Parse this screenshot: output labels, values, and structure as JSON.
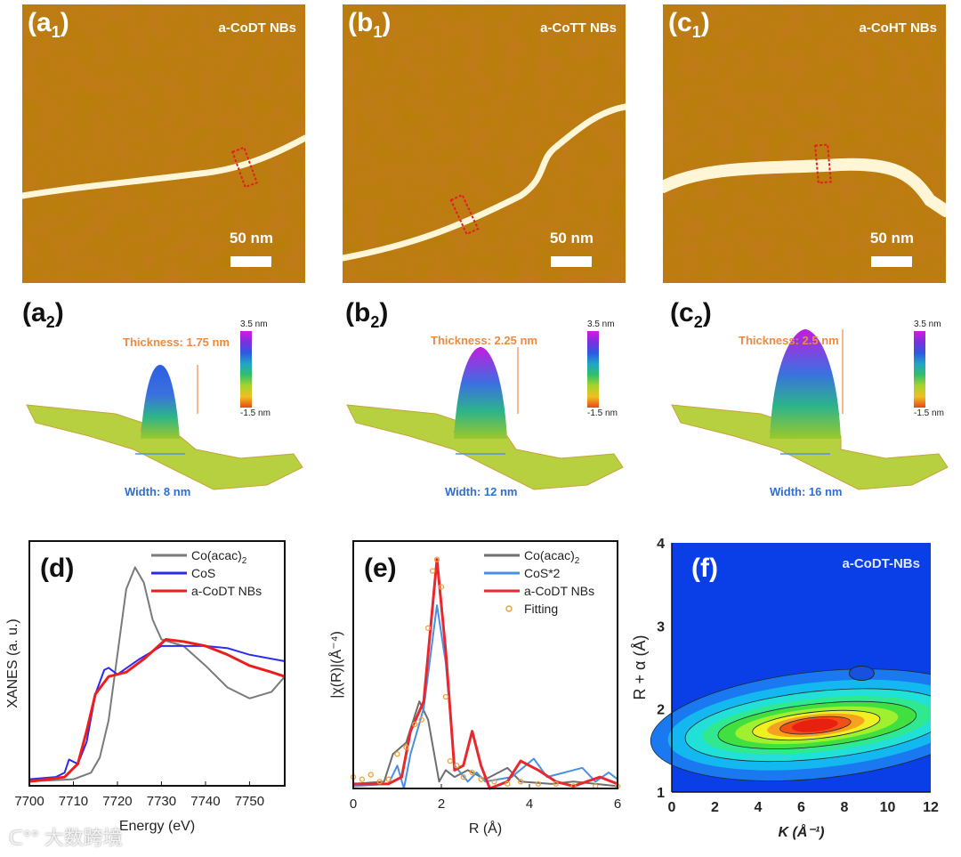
{
  "afm_panels": [
    {
      "label": "(a",
      "sub": "1",
      "close": ")",
      "title": "a-CoDT NBs",
      "scale": "50 nm"
    },
    {
      "label": "(b",
      "sub": "1",
      "close": ")",
      "title": "a-CoTT NBs",
      "scale": "50 nm"
    },
    {
      "label": "(c",
      "sub": "1",
      "close": ")",
      "title": "a-CoHT NBs",
      "scale": "50 nm"
    }
  ],
  "profile_panels": [
    {
      "label": "(a",
      "sub": "2",
      "close": ")",
      "thickness": "Thickness:  1.75 nm",
      "width": "Width: 8 nm",
      "cbar_max": "3.5 nm",
      "cbar_min": "-1.5 nm"
    },
    {
      "label": "(b",
      "sub": "2",
      "close": ")",
      "thickness": "Thickness:  2.25 nm",
      "width": "Width: 12 nm",
      "cbar_max": "3.5 nm",
      "cbar_min": "-1.5 nm"
    },
    {
      "label": "(c",
      "sub": "2",
      "close": ")",
      "thickness": "Thickness:  2.5 nm",
      "width": "Width: 16 nm",
      "cbar_max": "3.5 nm",
      "cbar_min": "-1.5 nm"
    }
  ],
  "watermark": "大数跨境",
  "chart_data": [
    {
      "type": "line",
      "panel": "(d)",
      "xlabel": "Energy (eV)",
      "ylabel": "XANES (a. u.)",
      "xlim": [
        7700,
        7758
      ],
      "ylim": [
        0,
        1.12
      ],
      "xticks": [
        7700,
        7710,
        7720,
        7730,
        7740,
        7750
      ],
      "legend_position": "top-right",
      "series": [
        {
          "name": "Co(acac)",
          "name_sub": "2",
          "color": "#7a7a7a",
          "x": [
            7700,
            7710,
            7714,
            7716,
            7718,
            7720,
            7722,
            7724,
            7726,
            7728,
            7730,
            7735,
            7740,
            7745,
            7750,
            7755,
            7758
          ],
          "y": [
            0.02,
            0.03,
            0.06,
            0.13,
            0.3,
            0.6,
            0.9,
            1.0,
            0.93,
            0.76,
            0.67,
            0.64,
            0.55,
            0.45,
            0.4,
            0.43,
            0.5
          ]
        },
        {
          "name": "CoS",
          "name_sub": "",
          "color": "#2b2bef",
          "x": [
            7700,
            7706,
            7708,
            7709,
            7711,
            7713,
            7715,
            7717,
            7718,
            7720,
            7725,
            7730,
            7740,
            7745,
            7750,
            7758
          ],
          "y": [
            0.03,
            0.04,
            0.06,
            0.12,
            0.1,
            0.2,
            0.42,
            0.53,
            0.54,
            0.51,
            0.58,
            0.64,
            0.64,
            0.63,
            0.6,
            0.57
          ]
        },
        {
          "name": "a-CoDT NBs",
          "name_sub": "",
          "color": "#ee1c1c",
          "x": [
            7700,
            7708,
            7711,
            7713,
            7715,
            7718,
            7722,
            7726,
            7731,
            7735,
            7740,
            7745,
            7750,
            7755,
            7758
          ],
          "y": [
            0.02,
            0.04,
            0.1,
            0.25,
            0.42,
            0.5,
            0.52,
            0.58,
            0.67,
            0.66,
            0.64,
            0.6,
            0.55,
            0.52,
            0.5
          ]
        }
      ]
    },
    {
      "type": "line",
      "panel": "(e)",
      "xlabel": "R (Å)",
      "ylabel": "|χ(R)|(Å⁻⁴)",
      "xlim": [
        0,
        6
      ],
      "ylim": [
        0,
        1.08
      ],
      "xticks": [
        0,
        2,
        4,
        6
      ],
      "legend_position": "top-right",
      "series": [
        {
          "name": "Co(acac)",
          "name_sub": "2",
          "color": "#6e6e6e",
          "x": [
            0,
            0.7,
            0.9,
            1.2,
            1.5,
            1.7,
            1.95,
            2.1,
            2.3,
            2.6,
            3.0,
            3.5,
            3.8,
            4.5,
            5.0,
            6.0
          ],
          "y": [
            0.02,
            0.03,
            0.15,
            0.2,
            0.38,
            0.3,
            0.03,
            0.08,
            0.05,
            0.08,
            0.04,
            0.09,
            0.03,
            0.02,
            0.03,
            0.01
          ]
        },
        {
          "name": "CoS*2",
          "name_sub": "",
          "color": "#4a90e2",
          "x": [
            0,
            0.8,
            1.0,
            1.15,
            1.3,
            1.6,
            1.9,
            2.1,
            2.3,
            2.6,
            2.8,
            3.0,
            3.6,
            4.1,
            4.4,
            4.8,
            5.2,
            5.5,
            5.8,
            6.0
          ],
          "y": [
            0.01,
            0.02,
            0.1,
            0.0,
            0.15,
            0.35,
            0.8,
            0.55,
            0.1,
            0.03,
            0.07,
            0.03,
            0.05,
            0.13,
            0.05,
            0.07,
            0.09,
            0.03,
            0.07,
            0.04
          ]
        },
        {
          "name": "a-CoDT NBs",
          "name_sub": "",
          "color": "#e8282e",
          "x": [
            0,
            0.8,
            1.1,
            1.3,
            1.6,
            1.9,
            2.1,
            2.3,
            2.5,
            2.7,
            2.9,
            3.1,
            3.5,
            3.8,
            4.2,
            4.6,
            5.0,
            5.6,
            6.0
          ],
          "y": [
            0.02,
            0.02,
            0.05,
            0.25,
            0.38,
            1.0,
            0.6,
            0.08,
            0.1,
            0.25,
            0.1,
            0.0,
            0.03,
            0.12,
            0.08,
            0.03,
            0.01,
            0.05,
            0.02
          ]
        },
        {
          "name": "Fitting",
          "name_sub": "",
          "color": "#f0a040",
          "marker": "circle",
          "x": [
            0,
            0.2,
            0.4,
            0.6,
            0.8,
            1.0,
            1.2,
            1.4,
            1.55,
            1.7,
            1.8,
            1.9,
            2.0,
            2.1,
            2.2,
            2.35,
            2.5,
            2.7,
            2.9,
            3.2,
            3.5,
            3.8,
            4.2,
            4.6,
            5.0,
            5.5,
            6.0
          ],
          "y": [
            0.05,
            0.04,
            0.06,
            0.03,
            0.04,
            0.15,
            0.18,
            0.28,
            0.3,
            0.7,
            0.95,
            1.0,
            0.88,
            0.4,
            0.12,
            0.1,
            0.05,
            0.07,
            0.04,
            0.03,
            0.02,
            0.03,
            0.02,
            0.02,
            0.01,
            0.01,
            0.01
          ]
        }
      ]
    },
    {
      "type": "heatmap",
      "panel": "(f)",
      "title": "a-CoDT-NBs",
      "xlabel": "K (Å⁻¹)",
      "ylabel": "R + α (Å)",
      "xlim": [
        0,
        12
      ],
      "ylim": [
        1,
        4
      ],
      "xticks": [
        0,
        2,
        4,
        6,
        8,
        10,
        12
      ],
      "yticks": [
        1,
        2,
        3,
        4
      ],
      "peak": {
        "k": 6.8,
        "r": 1.85
      }
    }
  ]
}
